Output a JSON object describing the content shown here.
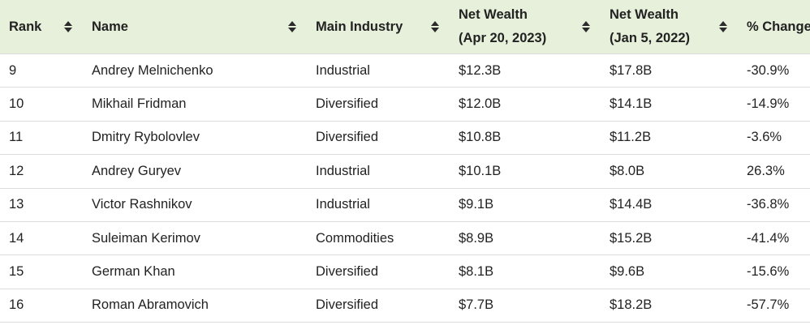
{
  "table": {
    "headers": [
      {
        "key": "rank",
        "line1": "Rank",
        "line2": ""
      },
      {
        "key": "name",
        "line1": "Name",
        "line2": ""
      },
      {
        "key": "industry",
        "line1": "Main Industry",
        "line2": ""
      },
      {
        "key": "nw2023",
        "line1": "Net Wealth",
        "line2": "(Apr 20, 2023)"
      },
      {
        "key": "nw2022",
        "line1": "Net Wealth",
        "line2": "(Jan 5, 2022)"
      },
      {
        "key": "change",
        "line1": "% Change",
        "line2": ""
      }
    ],
    "rows": [
      {
        "rank": "9",
        "name": "Andrey Melnichenko",
        "industry": "Industrial",
        "nw2023": "$12.3B",
        "nw2022": "$17.8B",
        "change": "-30.9%"
      },
      {
        "rank": "10",
        "name": "Mikhail Fridman",
        "industry": "Diversified",
        "nw2023": "$12.0B",
        "nw2022": "$14.1B",
        "change": "-14.9%"
      },
      {
        "rank": "11",
        "name": "Dmitry Rybolovlev",
        "industry": "Diversified",
        "nw2023": "$10.8B",
        "nw2022": "$11.2B",
        "change": "-3.6%"
      },
      {
        "rank": "12",
        "name": "Andrey Guryev",
        "industry": "Industrial",
        "nw2023": "$10.1B",
        "nw2022": "$8.0B",
        "change": "26.3%"
      },
      {
        "rank": "13",
        "name": "Victor Rashnikov",
        "industry": "Industrial",
        "nw2023": "$9.1B",
        "nw2022": "$14.4B",
        "change": "-36.8%"
      },
      {
        "rank": "14",
        "name": "Suleiman Kerimov",
        "industry": "Commodities",
        "nw2023": "$8.9B",
        "nw2022": "$15.2B",
        "change": "-41.4%"
      },
      {
        "rank": "15",
        "name": "German Khan",
        "industry": "Diversified",
        "nw2023": "$8.1B",
        "nw2022": "$9.6B",
        "change": "-15.6%"
      },
      {
        "rank": "16",
        "name": "Roman Abramovich",
        "industry": "Diversified",
        "nw2023": "$7.7B",
        "nw2022": "$18.2B",
        "change": "-57.7%"
      }
    ]
  },
  "colors": {
    "header_bg": "#e6f0da",
    "row_border": "#dcdcdc",
    "text": "#222222"
  },
  "icons": {
    "sort": "sort-up-down-icon"
  }
}
